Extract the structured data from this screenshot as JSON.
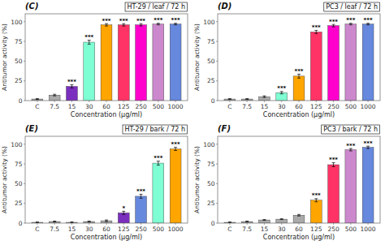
{
  "chart_data": [
    {
      "type": "bar",
      "title": "(C)",
      "subtitle": "HT-29 / leaf / 72 h",
      "categories": [
        "C",
        "7.5",
        "15",
        "30",
        "60",
        "125",
        "250",
        "500",
        "1000"
      ],
      "values": [
        2,
        7,
        18,
        74,
        96,
        96,
        96,
        97,
        97
      ],
      "errors": [
        0.5,
        1.0,
        2.0,
        2.5,
        1.5,
        1.5,
        1.5,
        1.0,
        1.0
      ],
      "colors": [
        "#aaaaaa",
        "#aaaaaa",
        "#7b2fbe",
        "#7fffd4",
        "#ffa500",
        "#ff3366",
        "#ff00cc",
        "#cc88cc",
        "#6688dd"
      ],
      "annotations": [
        {
          "x": "15",
          "text": "***"
        },
        {
          "x": "30",
          "text": "***"
        },
        {
          "x": "60",
          "text": "***"
        },
        {
          "x": "125",
          "text": "***"
        },
        {
          "x": "250",
          "text": "***"
        },
        {
          "x": "500",
          "text": "***"
        },
        {
          "x": "1000",
          "text": "***"
        }
      ],
      "xlabel": "Concentration (μg/ml)",
      "ylabel": "Antitumor activity (%)",
      "ylim": [
        0,
        110
      ],
      "yticks": [
        0,
        25,
        50,
        75,
        100
      ],
      "grid": false
    },
    {
      "type": "bar",
      "title": "(D)",
      "subtitle": "PC3 / leaf / 72 h",
      "categories": [
        "C",
        "7.5",
        "15",
        "30",
        "60",
        "125",
        "250",
        "500",
        "1000"
      ],
      "values": [
        2,
        2,
        5,
        10,
        31,
        87,
        95,
        97,
        97
      ],
      "errors": [
        0.5,
        0.5,
        1.0,
        1.5,
        2.5,
        2.0,
        1.5,
        1.0,
        1.0
      ],
      "colors": [
        "#aaaaaa",
        "#aaaaaa",
        "#aaaaaa",
        "#7fffd4",
        "#ffa500",
        "#ff3366",
        "#ff00cc",
        "#cc88cc",
        "#6688dd"
      ],
      "annotations": [
        {
          "x": "30",
          "text": "***"
        },
        {
          "x": "60",
          "text": "***"
        },
        {
          "x": "125",
          "text": "***"
        },
        {
          "x": "250",
          "text": "***"
        },
        {
          "x": "500",
          "text": "***"
        },
        {
          "x": "1000",
          "text": "***"
        }
      ],
      "xlabel": "Concentration (μg/ml)",
      "ylabel": "Antitumor activity (%)",
      "ylim": [
        0,
        110
      ],
      "yticks": [
        0,
        25,
        50,
        75,
        100
      ],
      "grid": false
    },
    {
      "type": "bar",
      "title": "(E)",
      "subtitle": "HT-29 / bark / 72 h",
      "categories": [
        "C",
        "7.5",
        "15",
        "30",
        "60",
        "125",
        "250",
        "500",
        "1000"
      ],
      "values": [
        1,
        2,
        1,
        2,
        3,
        13,
        34,
        76,
        94
      ],
      "errors": [
        0.5,
        0.5,
        0.5,
        0.5,
        1.0,
        2.0,
        2.5,
        2.5,
        2.0
      ],
      "colors": [
        "#aaaaaa",
        "#aaaaaa",
        "#aaaaaa",
        "#aaaaaa",
        "#aaaaaa",
        "#7b2fbe",
        "#6688dd",
        "#7fffd4",
        "#ffa500"
      ],
      "annotations": [
        {
          "x": "125",
          "text": "*"
        },
        {
          "x": "250",
          "text": "***"
        },
        {
          "x": "500",
          "text": "***"
        },
        {
          "x": "1000",
          "text": "***"
        }
      ],
      "xlabel": "Concentration (μg/ml)",
      "ylabel": "Antitumor activity (%)",
      "ylim": [
        0,
        110
      ],
      "yticks": [
        0,
        25,
        50,
        75,
        100
      ],
      "grid": false
    },
    {
      "type": "bar",
      "title": "(F)",
      "subtitle": "PC3 / bark / 72 h",
      "categories": [
        "C",
        "7.5",
        "15",
        "30",
        "60",
        "125",
        "250",
        "500",
        "1000"
      ],
      "values": [
        1,
        2,
        4,
        5,
        10,
        29,
        74,
        93,
        96
      ],
      "errors": [
        0.5,
        0.5,
        0.5,
        0.5,
        1.0,
        2.0,
        2.5,
        1.5,
        1.5
      ],
      "colors": [
        "#aaaaaa",
        "#aaaaaa",
        "#aaaaaa",
        "#aaaaaa",
        "#aaaaaa",
        "#ffa500",
        "#ff3366",
        "#cc88cc",
        "#6688dd"
      ],
      "annotations": [
        {
          "x": "125",
          "text": "***"
        },
        {
          "x": "250",
          "text": "***"
        },
        {
          "x": "500",
          "text": "***"
        },
        {
          "x": "1000",
          "text": "***"
        }
      ],
      "xlabel": "Concentration (μg/ml)",
      "ylabel": "Antitumor activity (%)",
      "ylim": [
        0,
        110
      ],
      "yticks": [
        0,
        25,
        50,
        75,
        100
      ],
      "grid": false
    }
  ]
}
